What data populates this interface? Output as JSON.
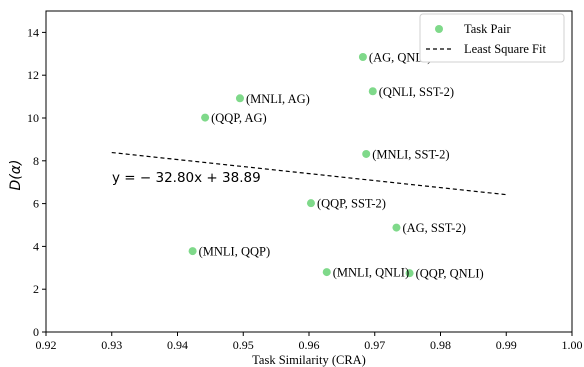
{
  "chart_data": {
    "type": "scatter",
    "xlabel": "Task Similarity (CRA)",
    "ylabel": "D(α)",
    "xlim": [
      0.92,
      1.0
    ],
    "ylim": [
      0,
      15
    ],
    "xticks": [
      "0.92",
      "0.93",
      "0.94",
      "0.95",
      "0.96",
      "0.97",
      "0.98",
      "0.99",
      "1.00"
    ],
    "yticks": [
      "0",
      "2",
      "4",
      "6",
      "8",
      "10",
      "12",
      "14"
    ],
    "grid": false,
    "legend_position": "top-right",
    "series": [
      {
        "name": "Task Pair",
        "color": "#7fd98a",
        "points": [
          {
            "x": 0.9682,
            "y": 12.85,
            "label": "(AG, QNLI)"
          },
          {
            "x": 0.9495,
            "y": 10.92,
            "label": "(MNLI, AG)"
          },
          {
            "x": 0.9697,
            "y": 11.25,
            "label": "(QNLI, SST-2)"
          },
          {
            "x": 0.9442,
            "y": 10.02,
            "label": "(QQP, AG)"
          },
          {
            "x": 0.9687,
            "y": 8.32,
            "label": "(MNLI, SST-2)"
          },
          {
            "x": 0.9603,
            "y": 6.02,
            "label": "(QQP, SST-2)"
          },
          {
            "x": 0.9733,
            "y": 4.88,
            "label": "(AG, SST-2)"
          },
          {
            "x": 0.9423,
            "y": 3.78,
            "label": "(MNLI, QQP)"
          },
          {
            "x": 0.9627,
            "y": 2.8,
            "label": "(MNLI, QNLI)"
          },
          {
            "x": 0.9753,
            "y": 2.75,
            "label": "(QQP, QNLI)"
          }
        ]
      }
    ],
    "fit_line": {
      "name": "Least Square Fit",
      "slope": -32.8,
      "intercept": 38.89,
      "x_range": [
        0.93,
        0.99
      ],
      "style": "dashed",
      "equation_label": "y = − 32.80x + 38.89"
    }
  }
}
